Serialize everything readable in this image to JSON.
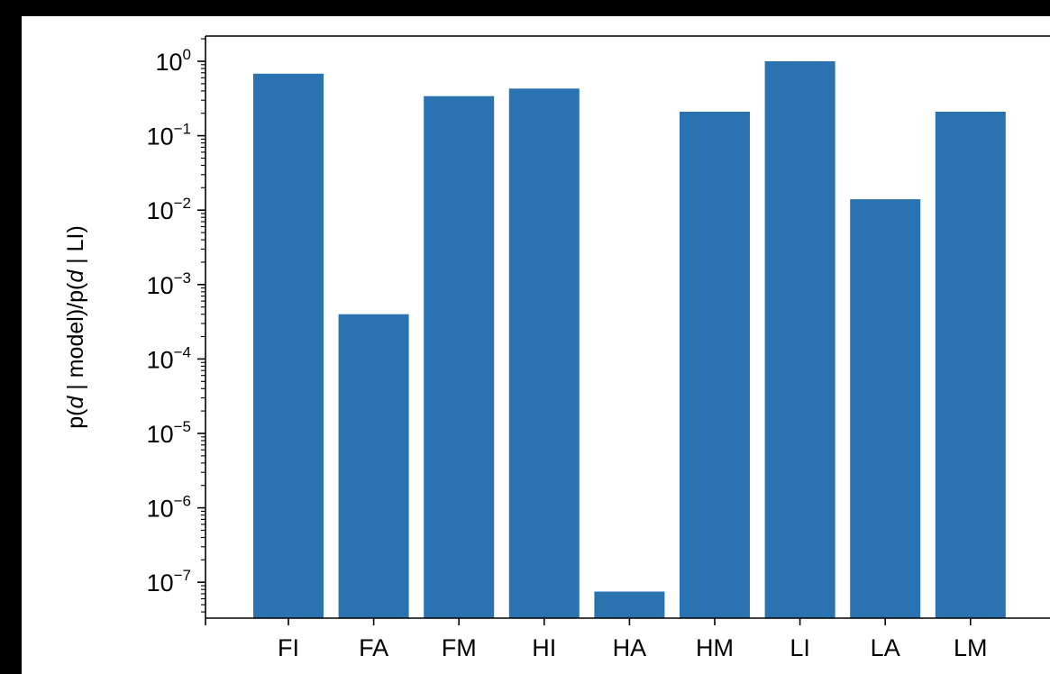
{
  "chart_data": {
    "type": "bar",
    "title": "",
    "xlabel": "",
    "ylabel": "p(d | model)/p(d | LI)",
    "ylabel_parts": [
      {
        "text": "p(",
        "italic": false
      },
      {
        "text": "d",
        "italic": true
      },
      {
        "text": " | model)/",
        "italic": false
      },
      {
        "text": "p(",
        "italic": false
      },
      {
        "text": "d",
        "italic": true
      },
      {
        "text": " | LI)",
        "italic": false
      }
    ],
    "yscale": "log",
    "ylim": [
      3e-08,
      1.6
    ],
    "yticks": [
      {
        "base": "10",
        "exp": "0",
        "value": 1
      },
      {
        "base": "10",
        "exp": "−1",
        "value": 0.1
      },
      {
        "base": "10",
        "exp": "−2",
        "value": 0.01
      },
      {
        "base": "10",
        "exp": "−3",
        "value": 0.001
      },
      {
        "base": "10",
        "exp": "−4",
        "value": 0.0001
      },
      {
        "base": "10",
        "exp": "−5",
        "value": 1e-05
      },
      {
        "base": "10",
        "exp": "−6",
        "value": 1e-06
      },
      {
        "base": "10",
        "exp": "−7",
        "value": 1e-07
      }
    ],
    "categories": [
      "FI",
      "FA",
      "FM",
      "HI",
      "HA",
      "HM",
      "LI",
      "LA",
      "LM"
    ],
    "values": [
      0.68,
      0.0004,
      0.34,
      0.43,
      7.5e-08,
      0.21,
      1.0,
      0.014,
      0.21
    ],
    "bar_color": "#2a72b0",
    "grid": false
  }
}
